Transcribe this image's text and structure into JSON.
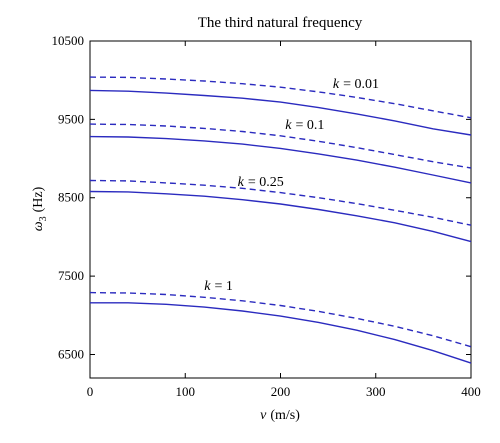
{
  "chart_data": {
    "type": "line",
    "title": "The third natural frequency",
    "xlabel": {
      "symbol": "v",
      "unit": "(m/s)"
    },
    "ylabel": {
      "symbol": "ω",
      "sub": "3",
      "unit": "(Hz)"
    },
    "xlim": [
      0,
      400
    ],
    "ylim": [
      6200,
      10500
    ],
    "xticks": [
      0,
      100,
      200,
      300,
      400
    ],
    "yticks": [
      6500,
      7500,
      8500,
      9500,
      10500
    ],
    "grid": false,
    "legend": "none",
    "line_color": "#2b2bbf",
    "x": [
      0,
      40,
      80,
      120,
      160,
      200,
      240,
      280,
      320,
      360,
      400
    ],
    "series": [
      {
        "style": "dashed",
        "values": [
          10040,
          10035,
          10015,
          9990,
          9955,
          9910,
          9850,
          9780,
          9700,
          9610,
          9520
        ]
      },
      {
        "style": "solid",
        "values": [
          9870,
          9860,
          9835,
          9805,
          9770,
          9720,
          9650,
          9570,
          9480,
          9380,
          9300
        ]
      },
      {
        "style": "dashed",
        "values": [
          9440,
          9435,
          9415,
          9385,
          9345,
          9290,
          9220,
          9140,
          9050,
          8960,
          8880
        ]
      },
      {
        "style": "solid",
        "values": [
          9280,
          9275,
          9255,
          9225,
          9185,
          9130,
          9060,
          8980,
          8890,
          8790,
          8690
        ]
      },
      {
        "style": "dashed",
        "values": [
          8720,
          8715,
          8690,
          8660,
          8620,
          8565,
          8500,
          8425,
          8340,
          8250,
          8150
        ]
      },
      {
        "style": "solid",
        "values": [
          8580,
          8575,
          8550,
          8520,
          8475,
          8420,
          8350,
          8270,
          8180,
          8070,
          7940
        ]
      },
      {
        "style": "dashed",
        "values": [
          7290,
          7285,
          7265,
          7230,
          7185,
          7125,
          7050,
          6960,
          6860,
          6740,
          6600
        ]
      },
      {
        "style": "solid",
        "values": [
          7160,
          7160,
          7140,
          7105,
          7055,
          6990,
          6910,
          6810,
          6690,
          6550,
          6390
        ]
      }
    ],
    "annotations": [
      {
        "k": "k",
        "eq": "= 0.01",
        "x": 255,
        "y": 9900
      },
      {
        "k": "k",
        "eq": "= 0.1",
        "x": 205,
        "y": 9380
      },
      {
        "k": "k",
        "eq": "= 0.25",
        "x": 155,
        "y": 8650
      },
      {
        "k": "k",
        "eq": "= 1",
        "x": 120,
        "y": 7320
      }
    ]
  }
}
